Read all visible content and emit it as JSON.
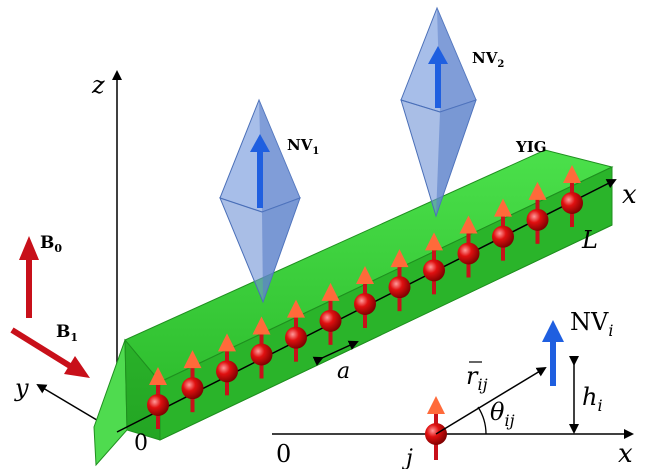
{
  "labels": {
    "z_axis": "z",
    "x_axis_top": "x",
    "y_axis": "y",
    "origin_main": "0",
    "length": "L",
    "material": "YIG",
    "nv1_main": "NV",
    "nv1_sub": "1",
    "nv2_main": "NV",
    "nv2_sub": "2",
    "b0_main": "B",
    "b0_sub": "0",
    "b1_main": "B",
    "b1_sub": "1",
    "spacing": "a",
    "inset_origin": "0",
    "inset_x": "x",
    "inset_site": "j",
    "inset_nv_main": "NV",
    "inset_nv_sub": "i",
    "inset_r_main": "r",
    "inset_r_sub": "ij",
    "inset_theta_main": "θ",
    "inset_theta_sub": "ij",
    "inset_h_main": "h",
    "inset_h_sub": "i"
  },
  "colors": {
    "bar_top": "#3fd13f",
    "bar_front": "#2db82d",
    "bar_end": "#5ee25e",
    "spin_ball": "#e01010",
    "spin_arrow": "#ff6a3a",
    "nv_crystal": "#6f93d6",
    "nv_arrow": "#1f5fe0",
    "field_arrow": "#c8101a"
  },
  "spin_count": 13
}
